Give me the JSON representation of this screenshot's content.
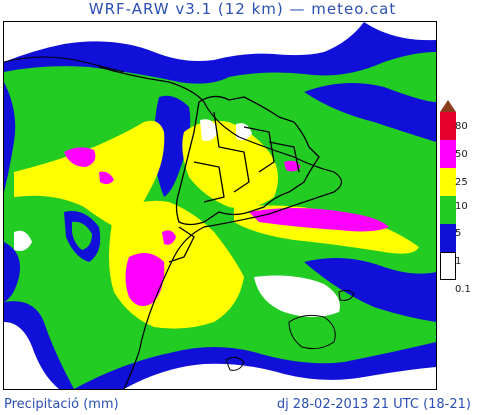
{
  "header": {
    "title": "WRF-ARW v3.1 (12 km) — meteo.cat"
  },
  "legend": {
    "levels": [
      "80",
      "50",
      "25",
      "10",
      "5",
      "1",
      "0.1"
    ],
    "colors": {
      "c80": "#8b3a1c",
      "c50": "#e4002b",
      "c25": "#ff00ff",
      "c10": "#ffff00",
      "c5": "#22cc22",
      "c1": "#1010d8",
      "c01": "#ffffff"
    }
  },
  "footer": {
    "variable": "Precipitació (mm)",
    "datetime": "dj 28-02-2013 21 UTC (18-21)"
  }
}
